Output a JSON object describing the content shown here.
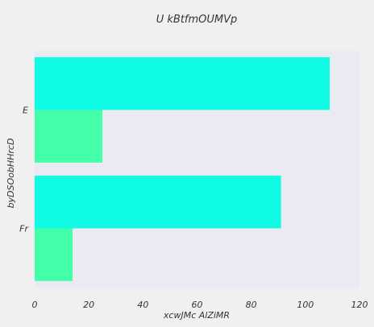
{
  "chart_data": {
    "type": "bar",
    "orientation": "horizontal",
    "title": "U kBtfmOUMVp",
    "xlabel": "xcwJMc AlZiMR",
    "ylabel": "byDSOobHHrcD",
    "categories": [
      "E",
      "Fr"
    ],
    "series": [
      {
        "values": [
          109,
          91
        ],
        "color": "#0ffbe3"
      },
      {
        "values": [
          25,
          14
        ],
        "color": "#44ffaa"
      }
    ],
    "xlim": [
      0,
      120
    ],
    "xticks": [
      0,
      20,
      40,
      60,
      80,
      100,
      120
    ],
    "grid": false,
    "legend": "none",
    "colors": {
      "page_background": "#f0f0f0",
      "plot_background": "#eaeaf2",
      "text": "#333333"
    }
  }
}
